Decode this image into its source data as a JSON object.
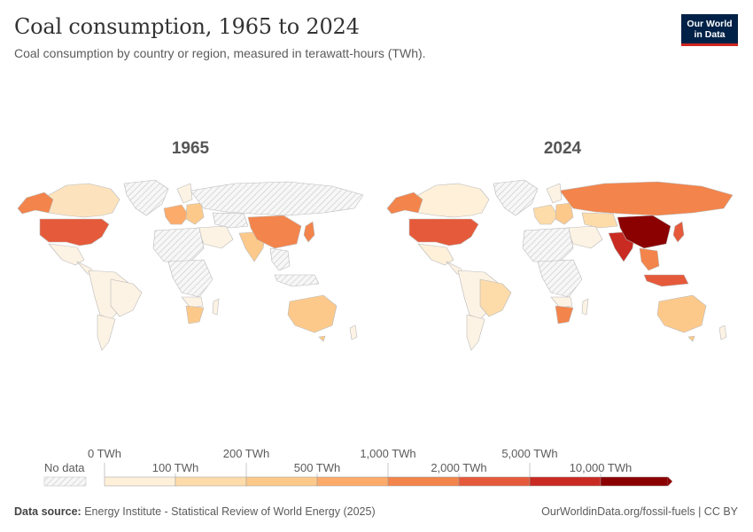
{
  "header": {
    "title": "Coal consumption, 1965 to 2024",
    "subtitle": "Coal consumption by country or region, measured in terawatt-hours (TWh)."
  },
  "logo": {
    "line1": "Our World",
    "line2": "in Data"
  },
  "panels": [
    {
      "year": "1965"
    },
    {
      "year": "2024"
    }
  ],
  "legend": {
    "no_data_label": "No data",
    "upper_labels": [
      "0 TWh",
      "200 TWh",
      "1,000 TWh",
      "5,000 TWh"
    ],
    "lower_labels": [
      "100 TWh",
      "500 TWh",
      "2,000 TWh",
      "10,000 TWh"
    ],
    "colors": [
      "#fef0d9",
      "#fddcaa",
      "#fdc98a",
      "#fcab6b",
      "#f3844b",
      "#e55a3a",
      "#c92a22",
      "#8b0000"
    ]
  },
  "footer": {
    "source_label": "Data source:",
    "source_text": "Energy Institute - Statistical Review of World Energy (2025)",
    "link": "OurWorldinData.org/fossil-fuels | CC BY"
  }
}
